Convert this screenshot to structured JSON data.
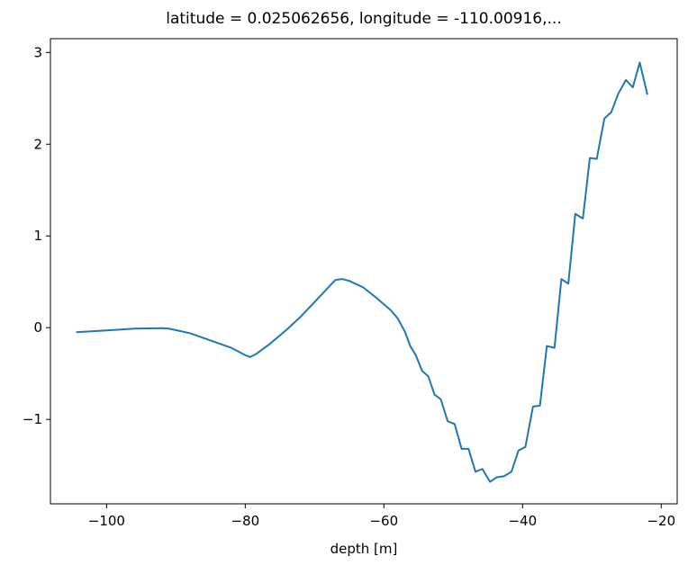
{
  "chart_data": {
    "type": "line",
    "title": "latitude = 0.025062656, longitude = -110.00916,...",
    "xlabel": "depth [m]",
    "x": [
      -104.4,
      -100,
      -96,
      -92,
      -91,
      -88,
      -85,
      -82,
      -80,
      -79.3,
      -78.5,
      -76.5,
      -74,
      -72,
      -70,
      -68,
      -67,
      -66,
      -65,
      -63,
      -61,
      -59,
      -58,
      -57,
      -56.2,
      -55.4,
      -54.5,
      -53.6,
      -52.7,
      -51.8,
      -50.8,
      -49.8,
      -48.8,
      -47.8,
      -46.8,
      -45.8,
      -44.7,
      -43.7,
      -42.7,
      -41.6,
      -40.6,
      -39.6,
      -38.5,
      -37.5,
      -36.5,
      -35.4,
      -34.4,
      -33.4,
      -32.4,
      -31.3,
      -30.3,
      -29.3,
      -28.2,
      -27.2,
      -26.2,
      -25.1,
      -24.1,
      -23.1,
      -22.0
    ],
    "series": [
      {
        "name": "value",
        "color": "#1f77b4",
        "values": [
          -0.05,
          -0.03,
          -0.01,
          -0.005,
          -0.01,
          -0.06,
          -0.14,
          -0.22,
          -0.3,
          -0.32,
          -0.29,
          -0.18,
          -0.02,
          0.12,
          0.28,
          0.44,
          0.52,
          0.53,
          0.51,
          0.44,
          0.32,
          0.19,
          0.1,
          -0.04,
          -0.2,
          -0.3,
          -0.47,
          -0.53,
          -0.73,
          -0.78,
          -1.02,
          -1.05,
          -1.32,
          -1.32,
          -1.57,
          -1.54,
          -1.68,
          -1.63,
          -1.62,
          -1.57,
          -1.34,
          -1.3,
          -0.86,
          -0.85,
          -0.2,
          -0.22,
          0.53,
          0.48,
          1.24,
          1.19,
          1.85,
          1.84,
          2.28,
          2.35,
          2.55,
          2.7,
          2.62,
          2.89,
          2.54
        ]
      }
    ],
    "xlim": [
      -108.1,
      -17.7
    ],
    "ylim": [
      -1.92,
      3.15
    ],
    "xticks": [
      {
        "value": -100,
        "label": "−100"
      },
      {
        "value": -80,
        "label": "−80"
      },
      {
        "value": -60,
        "label": "−60"
      },
      {
        "value": -40,
        "label": "−40"
      },
      {
        "value": -20,
        "label": "−20"
      }
    ],
    "yticks": [
      {
        "value": -1,
        "label": "−1"
      },
      0,
      1,
      2,
      3
    ]
  }
}
